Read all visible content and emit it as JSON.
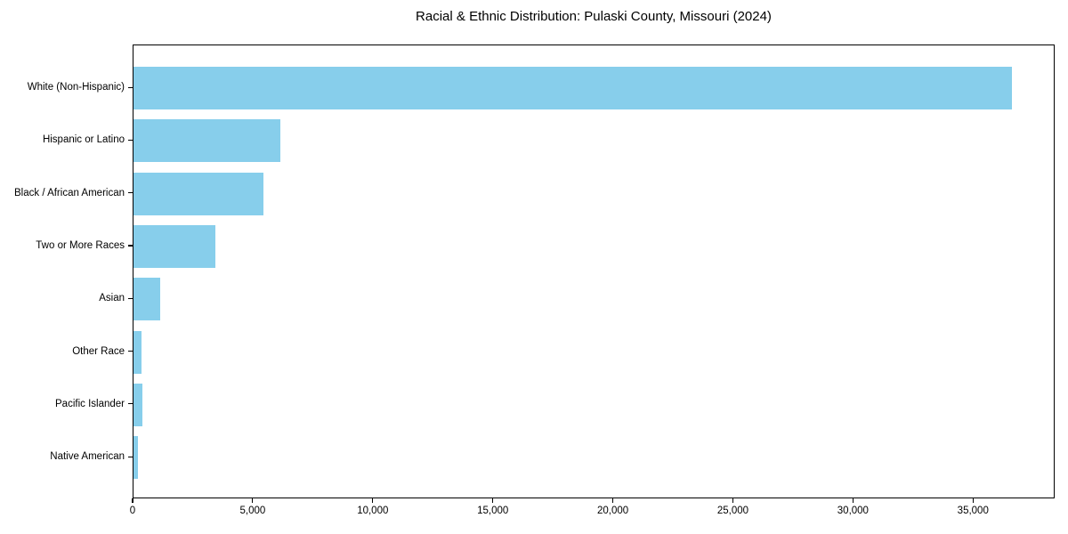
{
  "chart_data": {
    "type": "bar",
    "orientation": "horizontal",
    "title": "Racial & Ethnic Distribution: Pulaski County, Missouri (2024)",
    "categories": [
      "White (Non-Hispanic)",
      "Hispanic or Latino",
      "Black / African American",
      "Two or More Races",
      "Asian",
      "Other Race",
      "Pacific Islander",
      "Native American"
    ],
    "values": [
      36600,
      6100,
      5400,
      3400,
      1100,
      330,
      370,
      170
    ],
    "bar_color": "#87CEEB",
    "xlabel": "",
    "ylabel": "",
    "xlim": [
      0,
      38400
    ],
    "x_ticks": [
      0,
      5000,
      10000,
      15000,
      20000,
      25000,
      30000,
      35000
    ],
    "x_tick_labels": [
      "0",
      "5,000",
      "10,000",
      "15,000",
      "20,000",
      "25,000",
      "30,000",
      "35,000"
    ],
    "grid": false,
    "legend": "none",
    "spines": "full-box"
  }
}
